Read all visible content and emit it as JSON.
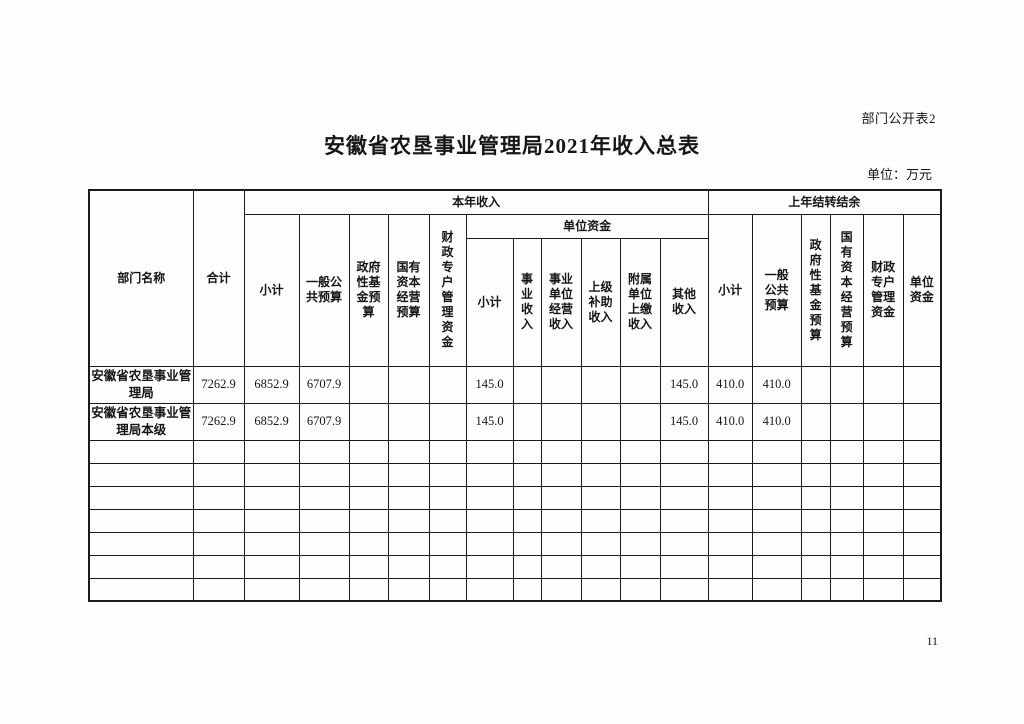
{
  "page": {
    "corner_label": "部门公开表2",
    "title": "安徽省农垦事业管理局2021年收入总表",
    "unit_label": "单位：万元",
    "page_number": "11"
  },
  "table": {
    "header": {
      "dept_name": "部门名称",
      "total": "合计",
      "current_year": {
        "label": "本年收入",
        "subtotal": "小计",
        "general_public_budget": "一般公共预算",
        "gov_fund_budget": "政府性基金预算",
        "state_capital_budget": "国有资本经营预算",
        "fiscal_account_funds": "财政专户管理资金",
        "unit_funds": {
          "label": "单位资金",
          "subtotal": "小计",
          "business_income": "事业收入",
          "operating_income": "事业单位经营收入",
          "superior_subsidy": "上级补助收入",
          "affiliated_remit": "附属单位上缴收入",
          "other_income": "其他收入"
        }
      },
      "prev_year": {
        "label": "上年结转结余",
        "subtotal": "小计",
        "general_public_budget": "一般公共预算",
        "gov_fund_budget": "政府性基金预算",
        "state_capital_budget": "国有资本经营预算",
        "fiscal_account_funds": "财政专户管理资金",
        "unit_funds": "单位资金"
      }
    },
    "rows": [
      {
        "name": "安徽省农垦事业管理局",
        "values": [
          "7262.9",
          "6852.9",
          "6707.9",
          "",
          "",
          "",
          "145.0",
          "",
          "",
          "",
          "",
          "145.0",
          "410.0",
          "410.0",
          "",
          "",
          "",
          ""
        ]
      },
      {
        "name": "安徽省农垦事业管理局本级",
        "values": [
          "7262.9",
          "6852.9",
          "6707.9",
          "",
          "",
          "",
          "145.0",
          "",
          "",
          "",
          "",
          "145.0",
          "410.0",
          "410.0",
          "",
          "",
          "",
          ""
        ]
      }
    ],
    "empty_row_count": 7
  }
}
